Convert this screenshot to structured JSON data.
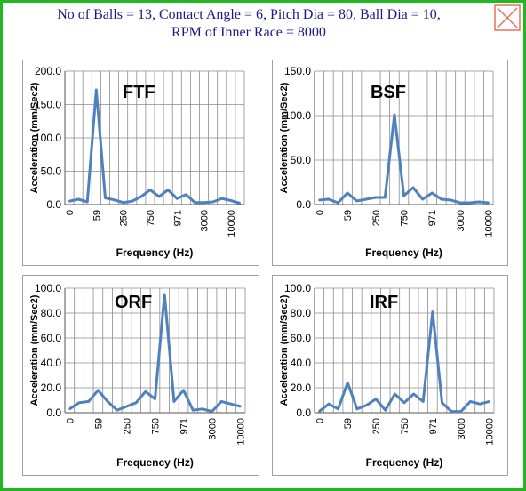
{
  "header": {
    "title_line1": "No of Balls = 13, Contact Angle = 6, Pitch Dia = 80, Ball Dia = 10,",
    "title_line2": "RPM of Inner Race = 8000"
  },
  "colors": {
    "frame": "#22b622",
    "title": "#1a1a8c",
    "series": "#4f81bd",
    "close": "#e9705a"
  },
  "close_icon": "close-icon",
  "chart_data": [
    {
      "type": "line",
      "title": "FTF",
      "ylabel": "Acceleration (mm/Sec2)",
      "xlabel": "Frequency (Hz)",
      "ylim": [
        0,
        200
      ],
      "yticks": [
        0,
        50,
        100,
        150,
        200
      ],
      "yticklabels": [
        "0.0",
        "50.0",
        "100.0",
        "150.0",
        "200.0"
      ],
      "xticklabels": [
        "0",
        "59",
        "250",
        "750",
        "971",
        "3000",
        "10000"
      ],
      "tick_positions": [
        0,
        3,
        6,
        9,
        12,
        15,
        18
      ],
      "values": [
        5,
        8,
        4,
        172,
        10,
        7,
        3,
        5,
        12,
        22,
        12,
        22,
        9,
        15,
        3,
        3,
        4,
        9,
        6,
        2
      ]
    },
    {
      "type": "line",
      "title": "BSF",
      "ylabel": "Acceleration (mm/Sec2)",
      "xlabel": "Frequency (Hz)",
      "ylim": [
        0,
        150
      ],
      "yticks": [
        0,
        50,
        100,
        150
      ],
      "yticklabels": [
        "0.0",
        "50.0",
        "100.0",
        "150.0"
      ],
      "xticklabels": [
        "0",
        "59",
        "250",
        "750",
        "971",
        "3000",
        "10000"
      ],
      "tick_positions": [
        0,
        3,
        6,
        9,
        12,
        15,
        18
      ],
      "values": [
        5,
        6,
        2,
        13,
        4,
        6,
        8,
        8,
        101,
        10,
        19,
        6,
        13,
        6,
        5,
        2,
        2,
        3,
        2
      ]
    },
    {
      "type": "line",
      "title": "ORF",
      "ylabel": "Acceleration (mm/Sec2)",
      "xlabel": "Frequency (Hz)",
      "ylim": [
        0,
        100
      ],
      "yticks": [
        0,
        20,
        40,
        60,
        80,
        100
      ],
      "yticklabels": [
        "0.0",
        "20.0",
        "40.0",
        "60.0",
        "80.0",
        "100.0"
      ],
      "xticklabels": [
        "0",
        "59",
        "250",
        "750",
        "971",
        "3000",
        "10000"
      ],
      "tick_positions": [
        0,
        3,
        6,
        9,
        12,
        15,
        18
      ],
      "values": [
        3,
        8,
        9,
        18,
        9,
        2,
        5,
        8,
        17,
        11,
        95,
        9,
        18,
        2,
        3,
        1,
        9,
        7,
        5
      ]
    },
    {
      "type": "line",
      "title": "IRF",
      "ylabel": "Acceleration (mm/Sec2)",
      "xlabel": "Frequency (Hz)",
      "ylim": [
        0,
        100
      ],
      "yticks": [
        0,
        20,
        40,
        60,
        80,
        100
      ],
      "yticklabels": [
        "0.0",
        "20.0",
        "40.0",
        "60.0",
        "80.0",
        "100.0"
      ],
      "xticklabels": [
        "0",
        "59",
        "250",
        "750",
        "971",
        "3000",
        "10000"
      ],
      "tick_positions": [
        0,
        3,
        6,
        9,
        12,
        15,
        18
      ],
      "values": [
        1,
        7,
        3,
        24,
        3,
        6,
        11,
        2,
        15,
        8,
        15,
        9,
        81,
        8,
        1,
        1,
        9,
        7,
        9
      ]
    }
  ]
}
